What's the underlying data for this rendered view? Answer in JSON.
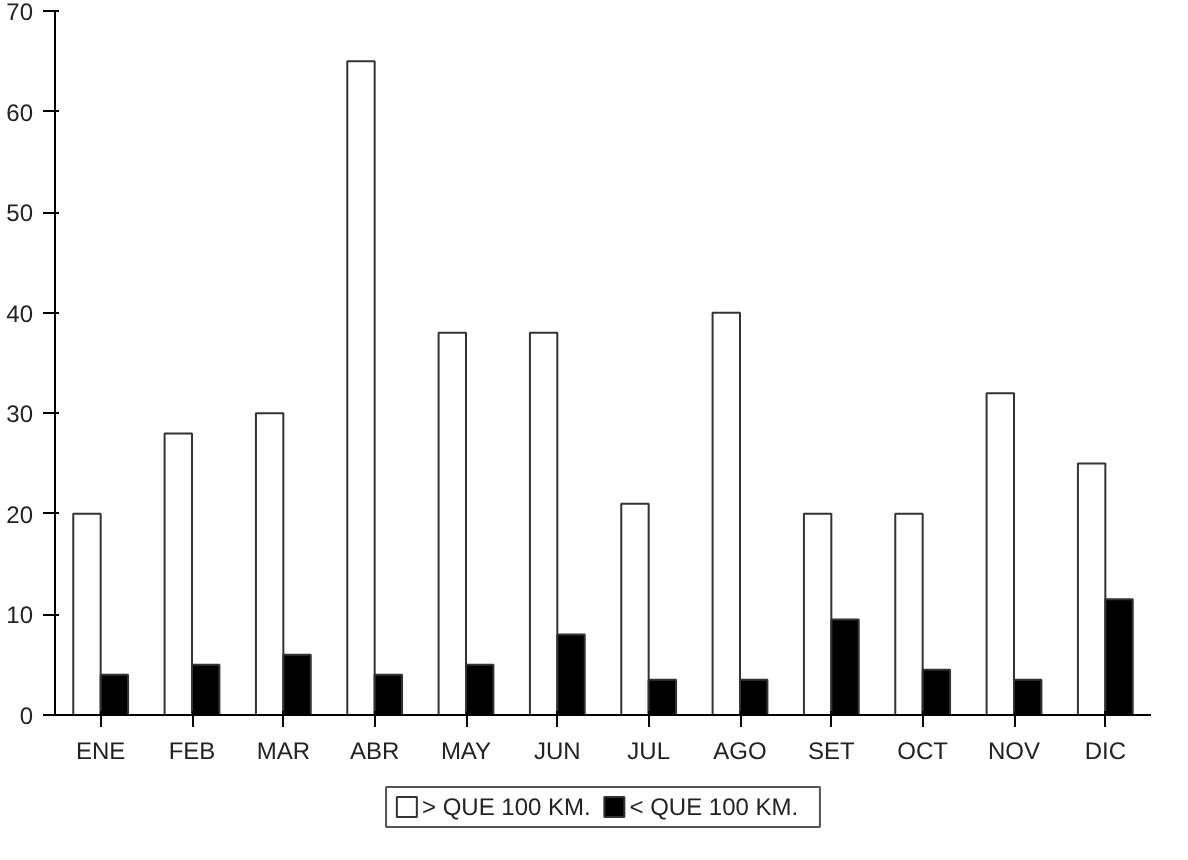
{
  "chart_data": {
    "type": "bar",
    "categories": [
      "ENE",
      "FEB",
      "MAR",
      "ABR",
      "MAY",
      "JUN",
      "JUL",
      "AGO",
      "SET",
      "OCT",
      "NOV",
      "DIC"
    ],
    "series": [
      {
        "name": "> QUE 100 KM.",
        "color": "#ffffff",
        "values": [
          20,
          28,
          30,
          65,
          38,
          38,
          21,
          40,
          20,
          20,
          32,
          25
        ]
      },
      {
        "name": "< QUE 100 KM.",
        "color": "#000000",
        "values": [
          4,
          5,
          6,
          4,
          5,
          8,
          3.5,
          3.5,
          9.5,
          4.5,
          3.5,
          11.5
        ]
      }
    ],
    "ylim": [
      0,
      70
    ],
    "yticks": [
      0,
      10,
      20,
      30,
      40,
      50,
      60,
      70
    ],
    "grid": false,
    "legend": "bottom"
  }
}
